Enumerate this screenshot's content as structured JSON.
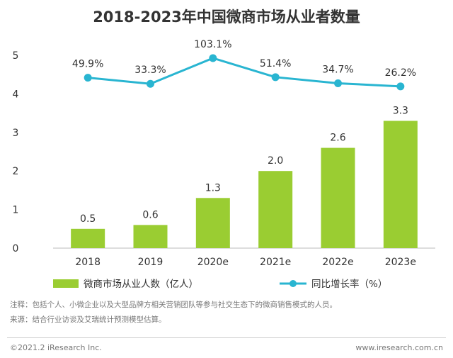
{
  "chart_data": {
    "type": "bar+line",
    "title": "2018-2023年中国微商市场从业者数量",
    "categories": [
      "2018",
      "2019",
      "2020e",
      "2021e",
      "2022e",
      "2023e"
    ],
    "series": [
      {
        "name": "微商市场从业人数（亿人）",
        "type": "bar",
        "values": [
          0.5,
          0.6,
          1.3,
          2.0,
          2.6,
          3.3
        ],
        "labels": [
          "0.5",
          "0.6",
          "1.3",
          "2.0",
          "2.6",
          "3.3"
        ],
        "color": "#9ACD32"
      },
      {
        "name": "同比增长率（%）",
        "type": "line",
        "values": [
          49.9,
          33.3,
          103.1,
          51.4,
          34.7,
          26.2
        ],
        "labels": [
          "49.9%",
          "33.3%",
          "103.1%",
          "51.4%",
          "34.7%",
          "26.2%"
        ],
        "color": "#29B5D1"
      }
    ],
    "ylim": [
      0,
      5
    ],
    "yticks": [
      "0",
      "1",
      "2",
      "3",
      "4",
      "5"
    ],
    "legend_position": "bottom"
  },
  "notes": {
    "note1": "注释：包括个人、小微企业以及大型品牌方相关营销团队等参与社交生态下的微商销售模式的人员。",
    "note2": "来源：结合行业访谈及艾瑞统计预测模型估算。"
  },
  "footer": {
    "left": "©2021.2 iResearch Inc.",
    "right": "www.iresearch.com.cn"
  }
}
